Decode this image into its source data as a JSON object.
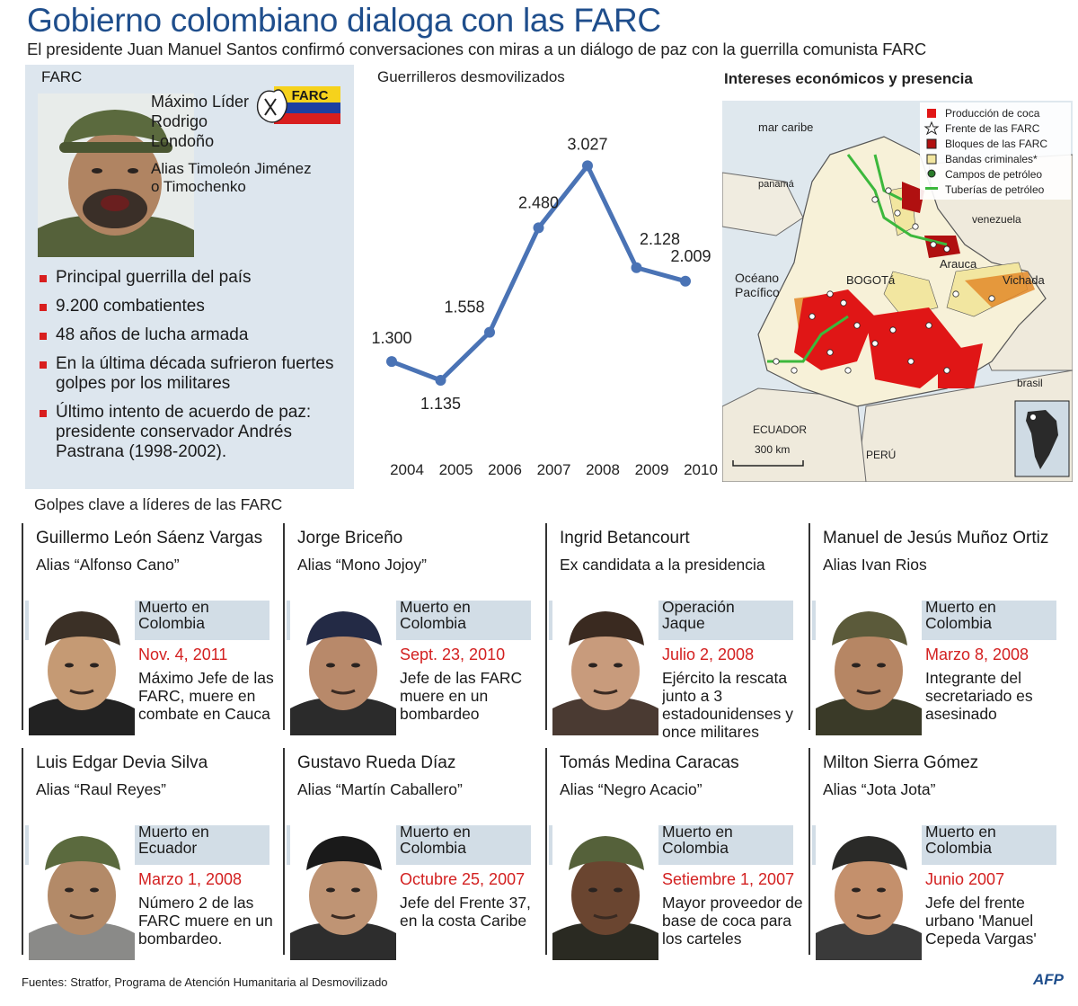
{
  "header": {
    "title": "Gobierno colombiano dialoga con las FARC",
    "subtitle": "El presidente Juan Manuel Santos confirmó conversaciones con miras a un diálogo de paz con la guerrilla comunista FARC"
  },
  "farc": {
    "label": "FARC",
    "flag_text": "FARC",
    "leader_role_1": "Máximo Líder",
    "leader_name_1": "Rodrigo",
    "leader_name_2": "Londoño",
    "alias_1": "Alias Timoleón Jiménez",
    "alias_2": "o Timochenko",
    "bullets": [
      "Principal guerrilla del país",
      "9.200 combatientes",
      "48 años de lucha armada",
      "En la última década sufrieron fuertes golpes por los militares",
      "Último intento de acuerdo de paz: presidente conservador Andrés Pastrana (1998-2002)."
    ],
    "colors": {
      "panel": "#dde6ee",
      "bullet": "#d81e1e"
    }
  },
  "chart_data": {
    "type": "line",
    "title": "Guerrilleros desmovilizados",
    "x": [
      "2004",
      "2005",
      "2006",
      "2007",
      "2008",
      "2009",
      "2010"
    ],
    "values": [
      1300,
      1135,
      1558,
      2480,
      3027,
      2128,
      2009
    ],
    "labels": [
      "1.300",
      "1.135",
      "1.558",
      "2.480",
      "3.027",
      "2.128",
      "2.009"
    ],
    "ylim": [
      1000,
      3300
    ],
    "grid": false,
    "color": "#4a73b5"
  },
  "map": {
    "title": "Intereses económicos y presencia",
    "legend": [
      {
        "label": "Producción de coca",
        "color": "#e01616"
      },
      {
        "label": "Frente de las FARC",
        "color": "#ffffff"
      },
      {
        "label": "Bloques de las FARC",
        "color": "#b01010"
      },
      {
        "label": "Bandas criminales*",
        "color": "#f2e6a0"
      },
      {
        "label": "Campos de petróleo",
        "color": "#2a7a2a"
      },
      {
        "label": "Tuberías de petróleo",
        "color": "#3cb83c"
      }
    ],
    "places": {
      "mar_caribe": "mar caribe",
      "panama": "panamá",
      "venezuela": "venezuela",
      "arauca": "Arauca",
      "oceano_1": "Océano",
      "oceano_2": "Pacífico",
      "bogota": "BOGOTá",
      "vichada": "Vichada",
      "brasil": "brasil",
      "ecuador": "ECUADOR",
      "peru": "PERÚ",
      "scale": "300 km"
    }
  },
  "golpes": {
    "title": "Golpes clave a líderes de las FARC",
    "cards": [
      {
        "name": "Guillermo León Sáenz Vargas",
        "alias": "Alias “Alfonso Cano”",
        "event_1": "Muerto en",
        "event_2": "Colombia",
        "date": "Nov. 4, 2011",
        "desc": "Máximo Jefe de las FARC, muere en combate en Cauca"
      },
      {
        "name": "Jorge Briceño",
        "alias": "Alias “Mono Jojoy”",
        "event_1": "Muerto en",
        "event_2": "Colombia",
        "date": "Sept. 23, 2010",
        "desc": "Jefe de las FARC muere en un bombardeo"
      },
      {
        "name": "Ingrid Betancourt",
        "alias": "Ex candidata a la presidencia",
        "event_1": "Operación",
        "event_2": "Jaque",
        "date": "Julio 2, 2008",
        "desc": "Ejército la rescata junto a 3 estadounidenses y once militares"
      },
      {
        "name": "Manuel de Jesús Muñoz Ortiz",
        "alias": "Alias Ivan Rios",
        "event_1": "Muerto en",
        "event_2": "Colombia",
        "date": "Marzo 8, 2008",
        "desc": "Integrante del secretariado es asesinado"
      },
      {
        "name": "Luis Edgar Devia Silva",
        "alias": "Alias “Raul Reyes”",
        "event_1": "Muerto en",
        "event_2": "Ecuador",
        "date": "Marzo 1, 2008",
        "desc": "Número 2 de las FARC muere en un bombardeo."
      },
      {
        "name": "Gustavo Rueda Díaz",
        "alias": "Alias “Martín Caballero”",
        "event_1": "Muerto en",
        "event_2": "Colombia",
        "date": "Octubre 25, 2007",
        "desc": "Jefe del Frente 37, en la costa Caribe"
      },
      {
        "name": "Tomás Medina Caracas",
        "alias": "Alias “Negro Acacio”",
        "event_1": "Muerto en",
        "event_2": "Colombia",
        "date": "Setiembre 1, 2007",
        "desc": "Mayor proveedor de base de coca para los carteles"
      },
      {
        "name": "Milton Sierra Gómez",
        "alias": "Alias “Jota Jota”",
        "event_1": "Muerto en",
        "event_2": "Colombia",
        "date": "Junio 2007",
        "desc": "Jefe del frente urbano 'Manuel Cepeda Vargas'"
      }
    ]
  },
  "footer": {
    "sources": "Fuentes: Stratfor, Programa de Atención Humanitaria al Desmovilizado",
    "agency": "AFP"
  }
}
